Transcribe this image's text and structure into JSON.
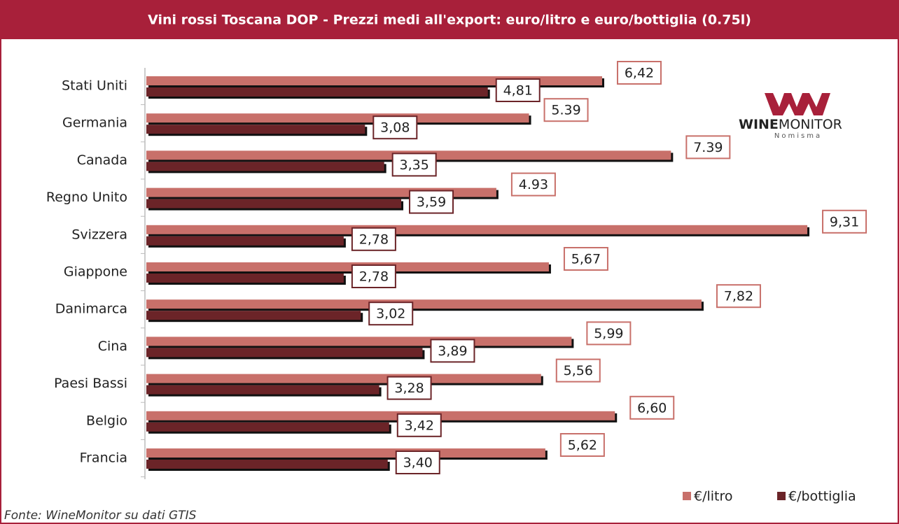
{
  "chart_data": {
    "type": "bar",
    "orientation": "horizontal",
    "title": "Vini rossi Toscana DOP - Prezzi medi all'export:  euro/litro e euro/bottiglia  (0.75l)",
    "categories": [
      "Stati Uniti",
      "Germania",
      "Canada",
      "Regno Unito",
      "Svizzera",
      "Giappone",
      "Danimarca",
      "Cina",
      "Paesi Bassi",
      "Belgio",
      "Francia"
    ],
    "series": [
      {
        "name": "€/litro",
        "color": "#c8706a",
        "values": [
          6.42,
          5.39,
          7.39,
          4.93,
          9.31,
          5.67,
          7.82,
          5.99,
          5.56,
          6.6,
          5.62
        ],
        "value_labels": [
          "6,42",
          "5.39",
          "7.39",
          "4.93",
          "9,31",
          "5,67",
          "7,82",
          "5,99",
          "5,56",
          "6,60",
          "5,62"
        ]
      },
      {
        "name": "€/bottiglia",
        "color": "#6b2428",
        "values": [
          4.81,
          3.08,
          3.35,
          3.59,
          2.78,
          2.78,
          3.02,
          3.89,
          3.28,
          3.42,
          3.4
        ],
        "value_labels": [
          "4,81",
          "3,08",
          "3,35",
          "3,59",
          "2,78",
          "2,78",
          "3,02",
          "3,89",
          "3,28",
          "3,42",
          "3,40"
        ]
      }
    ],
    "legend": "bottom-right",
    "source": "Fonte: WineMonitor su dati GTIS"
  },
  "logo": {
    "bold": "WINE",
    "rest": "MONITOR",
    "sub": "Nomisma"
  }
}
